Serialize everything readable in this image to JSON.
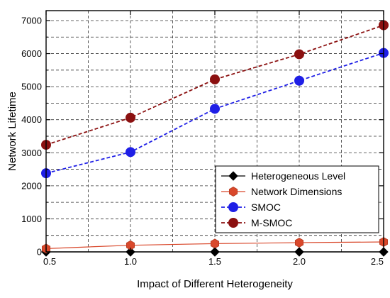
{
  "chart_data": {
    "type": "line",
    "title": "",
    "xlabel": "Impact of Different Heterogeneity",
    "ylabel": "Network Lifetime",
    "x": [
      0.5,
      1.0,
      1.5,
      2.0,
      2.5
    ],
    "xlim": [
      0.5,
      2.5
    ],
    "ylim": [
      0,
      7300
    ],
    "x_ticks": [
      "0.5",
      "1.0",
      "1.5",
      "2.0",
      "2.5"
    ],
    "y_ticks": [
      "0",
      "1000",
      "2000",
      "3000",
      "4000",
      "5000",
      "6000",
      "7000"
    ],
    "grid": true,
    "legend_position": "bottom-right",
    "series": [
      {
        "name": "Heterogeneous Level",
        "values": [
          0,
          0,
          0,
          0,
          0
        ],
        "color": "#000000",
        "marker": "diamond",
        "line": "solid"
      },
      {
        "name": "Network Dimensions",
        "values": [
          100,
          200,
          250,
          280,
          300
        ],
        "color": "#d9482b",
        "marker": "hexagon",
        "line": "solid"
      },
      {
        "name": "SMOC",
        "values": [
          2380,
          3020,
          4330,
          5180,
          6020
        ],
        "color": "#1f1fe6",
        "marker": "circle",
        "line": "dashed"
      },
      {
        "name": "M-SMOC",
        "values": [
          3240,
          4060,
          5220,
          5980,
          6860
        ],
        "color": "#8b1010",
        "marker": "circle",
        "line": "dashed"
      }
    ]
  }
}
